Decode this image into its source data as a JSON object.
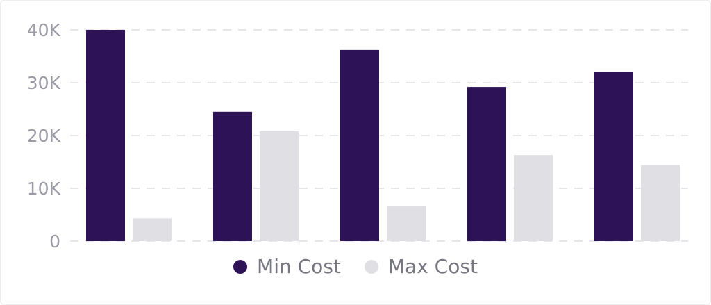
{
  "chart_data": {
    "type": "bar",
    "title": "",
    "xlabel": "",
    "ylabel": "",
    "categories": [
      "",
      "",
      "",
      "",
      ""
    ],
    "ylim": [
      0,
      40000
    ],
    "y_ticks": [
      {
        "value": 0,
        "label": "0"
      },
      {
        "value": 10000,
        "label": "10K"
      },
      {
        "value": 20000,
        "label": "20K"
      },
      {
        "value": 30000,
        "label": "30K"
      },
      {
        "value": 40000,
        "label": "40K"
      }
    ],
    "grid": true,
    "legend_position": "bottom-center",
    "series": [
      {
        "name": "Min Cost",
        "color": "#2e1258",
        "values": [
          40000,
          24500,
          36200,
          29200,
          32000
        ]
      },
      {
        "name": "Max Cost",
        "color": "#e0e0e4",
        "values": [
          4300,
          20800,
          6700,
          16300,
          14400
        ]
      }
    ]
  }
}
